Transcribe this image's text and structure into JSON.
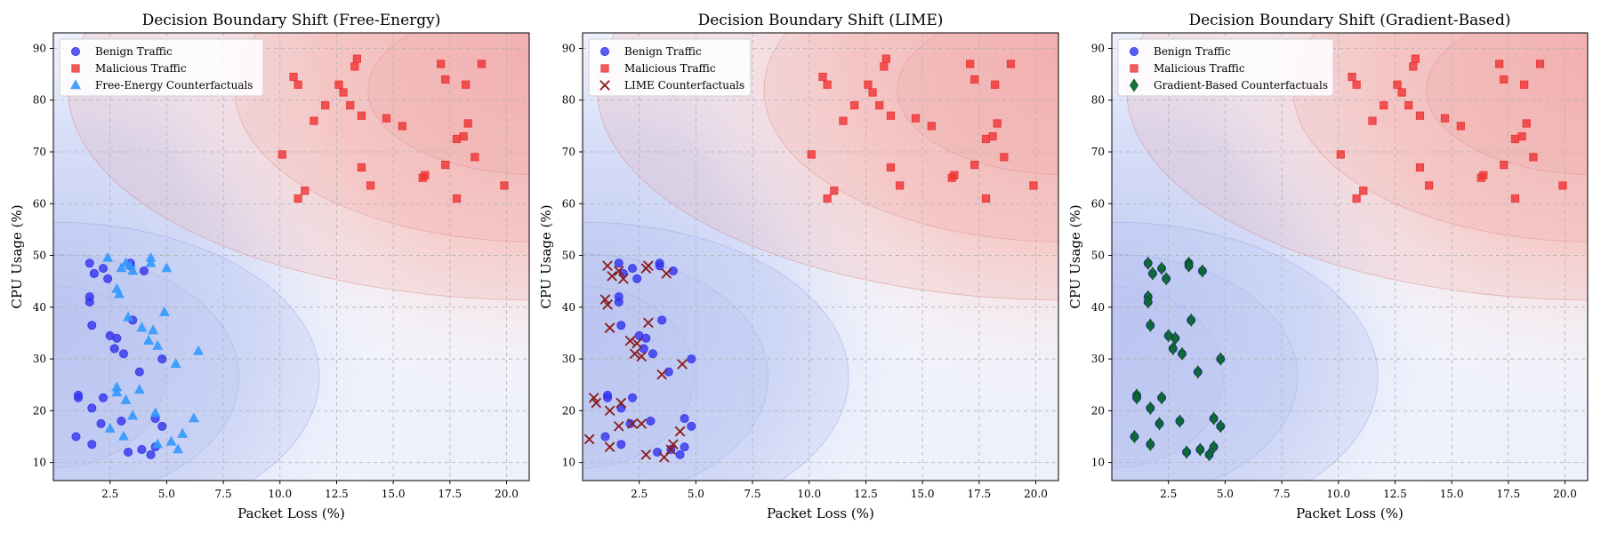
{
  "chart_data": [
    {
      "type": "scatter",
      "title": "Decision Boundary Shift (Free-Energy)",
      "xlabel": "Packet Loss (%)",
      "ylabel": "CPU Usage (%)",
      "xlim": [
        0,
        21
      ],
      "ylim": [
        6.5,
        93
      ],
      "xticks": [
        2.5,
        5.0,
        7.5,
        10.0,
        12.5,
        15.0,
        17.5,
        20.0
      ],
      "yticks": [
        10,
        20,
        30,
        40,
        50,
        60,
        70,
        80,
        90
      ],
      "grid": true,
      "legend_position": "top-left",
      "series": [
        {
          "name": "Benign Traffic",
          "marker": "circle",
          "color": "#3333ee",
          "x": [
            1.6,
            1.8,
            2.2,
            2.4,
            1.6,
            1.6,
            3.4,
            4.0,
            3.4,
            1.7,
            2.5,
            2.8,
            3.5,
            2.7,
            3.1,
            4.8,
            3.8,
            1.1,
            1.1,
            2.2,
            1.7,
            2.1,
            3.0,
            4.5,
            4.8,
            1.0,
            1.7,
            3.9,
            3.3,
            4.5,
            4.3
          ],
          "y": [
            48.5,
            46.5,
            47.5,
            45.5,
            42.0,
            41.0,
            48.5,
            47.0,
            48.0,
            36.5,
            34.5,
            34.0,
            37.5,
            32.0,
            31.0,
            30.0,
            27.5,
            23.0,
            22.5,
            22.5,
            20.5,
            17.5,
            18.0,
            18.5,
            17.0,
            15.0,
            13.5,
            12.5,
            12.0,
            13.0,
            11.5
          ]
        },
        {
          "name": "Malicious Traffic",
          "marker": "square",
          "color": "#ee3333",
          "x": [
            10.6,
            10.8,
            11.5,
            12.0,
            12.8,
            12.6,
            13.3,
            13.4,
            13.1,
            13.6,
            14.7,
            15.4,
            17.1,
            17.3,
            18.2,
            18.9,
            18.3,
            17.8,
            18.1,
            17.3,
            18.6,
            16.3,
            16.4,
            19.9,
            13.6,
            14.0,
            10.1,
            11.1,
            10.8,
            17.8
          ],
          "y": [
            84.5,
            83.0,
            76.0,
            79.0,
            81.5,
            83.0,
            86.5,
            88.0,
            79.0,
            77.0,
            76.5,
            75.0,
            87.0,
            84.0,
            83.0,
            87.0,
            75.5,
            72.5,
            73.0,
            67.5,
            69.0,
            65.0,
            65.5,
            63.5,
            67.0,
            63.5,
            69.5,
            62.5,
            61.0,
            61.0
          ]
        },
        {
          "name": "Free-Energy Counterfactuals",
          "marker": "triangle",
          "color": "#3399ff",
          "x": [
            2.4,
            3.0,
            3.2,
            3.4,
            3.5,
            4.3,
            4.3,
            5.0,
            2.8,
            2.9,
            3.3,
            4.9,
            3.9,
            4.4,
            4.2,
            4.6,
            5.4,
            6.4,
            2.8,
            2.8,
            3.8,
            3.2,
            3.5,
            4.5,
            6.2,
            2.5,
            3.1,
            5.7,
            5.2,
            4.6,
            5.5
          ],
          "y": [
            49.5,
            47.5,
            48.5,
            48.0,
            47.0,
            49.5,
            48.5,
            47.5,
            43.5,
            42.5,
            38.0,
            39.0,
            36.0,
            35.5,
            33.5,
            32.5,
            29.0,
            31.5,
            24.5,
            23.5,
            24.0,
            22.0,
            19.0,
            19.5,
            18.5,
            16.5,
            15.0,
            15.5,
            14.0,
            13.5,
            12.5
          ]
        }
      ]
    },
    {
      "type": "scatter",
      "title": "Decision Boundary Shift (LIME)",
      "xlabel": "Packet Loss (%)",
      "ylabel": "CPU Usage (%)",
      "xlim": [
        0,
        21
      ],
      "ylim": [
        6.5,
        93
      ],
      "xticks": [
        2.5,
        5.0,
        7.5,
        10.0,
        12.5,
        15.0,
        17.5,
        20.0
      ],
      "yticks": [
        10,
        20,
        30,
        40,
        50,
        60,
        70,
        80,
        90
      ],
      "grid": true,
      "legend_position": "top-left",
      "series": [
        {
          "name": "Benign Traffic",
          "marker": "circle",
          "color": "#3333ee",
          "x": [
            1.6,
            1.8,
            2.2,
            2.4,
            1.6,
            1.6,
            3.4,
            4.0,
            3.4,
            1.7,
            2.5,
            2.8,
            3.5,
            2.7,
            3.1,
            4.8,
            3.8,
            1.1,
            1.1,
            2.2,
            1.7,
            2.1,
            3.0,
            4.5,
            4.8,
            1.0,
            1.7,
            3.9,
            3.3,
            4.5,
            4.3
          ],
          "y": [
            48.5,
            46.5,
            47.5,
            45.5,
            42.0,
            41.0,
            48.5,
            47.0,
            48.0,
            36.5,
            34.5,
            34.0,
            37.5,
            32.0,
            31.0,
            30.0,
            27.5,
            23.0,
            22.5,
            22.5,
            20.5,
            17.5,
            18.0,
            18.5,
            17.0,
            15.0,
            13.5,
            12.5,
            12.0,
            13.0,
            11.5
          ]
        },
        {
          "name": "Malicious Traffic",
          "marker": "square",
          "color": "#ee3333",
          "x": [
            10.6,
            10.8,
            11.5,
            12.0,
            12.8,
            12.6,
            13.3,
            13.4,
            13.1,
            13.6,
            14.7,
            15.4,
            17.1,
            17.3,
            18.2,
            18.9,
            18.3,
            17.8,
            18.1,
            17.3,
            18.6,
            16.3,
            16.4,
            19.9,
            13.6,
            14.0,
            10.1,
            11.1,
            10.8,
            17.8
          ],
          "y": [
            84.5,
            83.0,
            76.0,
            79.0,
            81.5,
            83.0,
            86.5,
            88.0,
            79.0,
            77.0,
            76.5,
            75.0,
            87.0,
            84.0,
            83.0,
            87.0,
            75.5,
            72.5,
            73.0,
            67.5,
            69.0,
            65.0,
            65.5,
            63.5,
            67.0,
            63.5,
            69.5,
            62.5,
            61.0,
            61.0
          ]
        },
        {
          "name": "LIME Counterfactuals",
          "marker": "x",
          "color": "#8b1a1a",
          "x": [
            1.1,
            1.3,
            1.6,
            1.8,
            2.8,
            2.9,
            3.7,
            1.0,
            1.1,
            1.2,
            2.1,
            2.4,
            2.9,
            2.3,
            2.6,
            3.5,
            4.4,
            0.5,
            0.6,
            1.2,
            1.7,
            2.6,
            4.3,
            1.6,
            2.2,
            0.3,
            1.2,
            2.8,
            3.9,
            4.0,
            3.6
          ],
          "y": [
            48.0,
            46.0,
            47.0,
            45.5,
            47.5,
            48.0,
            46.5,
            41.5,
            40.5,
            36.0,
            33.5,
            33.0,
            37.0,
            31.0,
            30.5,
            27.0,
            29.0,
            22.5,
            21.5,
            20.0,
            21.5,
            17.5,
            16.0,
            17.0,
            17.5,
            14.5,
            13.0,
            11.5,
            12.5,
            13.5,
            11.0
          ]
        }
      ]
    },
    {
      "type": "scatter",
      "title": "Decision Boundary Shift (Gradient-Based)",
      "xlabel": "Packet Loss (%)",
      "ylabel": "CPU Usage (%)",
      "xlim": [
        0,
        21
      ],
      "ylim": [
        6.5,
        93
      ],
      "xticks": [
        2.5,
        5.0,
        7.5,
        10.0,
        12.5,
        15.0,
        17.5,
        20.0
      ],
      "yticks": [
        10,
        20,
        30,
        40,
        50,
        60,
        70,
        80,
        90
      ],
      "grid": true,
      "legend_position": "top-left",
      "series": [
        {
          "name": "Benign Traffic",
          "marker": "circle",
          "color": "#3333ee",
          "x": [
            1.6,
            1.8,
            2.2,
            2.4,
            1.6,
            1.6,
            3.4,
            4.0,
            3.4,
            1.7,
            2.5,
            2.8,
            3.5,
            2.7,
            3.1,
            4.8,
            3.8,
            1.1,
            1.1,
            2.2,
            1.7,
            2.1,
            3.0,
            4.5,
            4.8,
            1.0,
            1.7,
            3.9,
            3.3,
            4.5,
            4.3
          ],
          "y": [
            48.5,
            46.5,
            47.5,
            45.5,
            42.0,
            41.0,
            48.5,
            47.0,
            48.0,
            36.5,
            34.5,
            34.0,
            37.5,
            32.0,
            31.0,
            30.0,
            27.5,
            23.0,
            22.5,
            22.5,
            20.5,
            17.5,
            18.0,
            18.5,
            17.0,
            15.0,
            13.5,
            12.5,
            12.0,
            13.0,
            11.5
          ]
        },
        {
          "name": "Malicious Traffic",
          "marker": "square",
          "color": "#ee3333",
          "x": [
            10.6,
            10.8,
            11.5,
            12.0,
            12.8,
            12.6,
            13.3,
            13.4,
            13.1,
            13.6,
            14.7,
            15.4,
            17.1,
            17.3,
            18.2,
            18.9,
            18.3,
            17.8,
            18.1,
            17.3,
            18.6,
            16.3,
            16.4,
            19.9,
            13.6,
            14.0,
            10.1,
            11.1,
            10.8,
            17.8
          ],
          "y": [
            84.5,
            83.0,
            76.0,
            79.0,
            81.5,
            83.0,
            86.5,
            88.0,
            79.0,
            77.0,
            76.5,
            75.0,
            87.0,
            84.0,
            83.0,
            87.0,
            75.5,
            72.5,
            73.0,
            67.5,
            69.0,
            65.0,
            65.5,
            63.5,
            67.0,
            63.5,
            69.5,
            62.5,
            61.0,
            61.0
          ]
        },
        {
          "name": "Gradient-Based Counterfactuals",
          "marker": "diamond",
          "color": "#0b6b2b",
          "x": [
            1.6,
            1.8,
            2.2,
            2.4,
            1.6,
            1.6,
            3.4,
            4.0,
            3.4,
            1.7,
            2.5,
            2.8,
            3.5,
            2.7,
            3.1,
            4.8,
            3.8,
            1.1,
            1.1,
            2.2,
            1.7,
            2.1,
            3.0,
            4.5,
            4.8,
            1.0,
            1.7,
            3.9,
            3.3,
            4.5,
            4.3
          ],
          "y": [
            48.5,
            46.5,
            47.5,
            45.5,
            42.0,
            41.0,
            48.5,
            47.0,
            48.0,
            36.5,
            34.5,
            34.0,
            37.5,
            32.0,
            31.0,
            30.0,
            27.5,
            23.0,
            22.5,
            22.5,
            20.5,
            17.5,
            18.0,
            18.5,
            17.0,
            15.0,
            13.5,
            12.5,
            12.0,
            13.0,
            11.5
          ]
        }
      ]
    }
  ]
}
